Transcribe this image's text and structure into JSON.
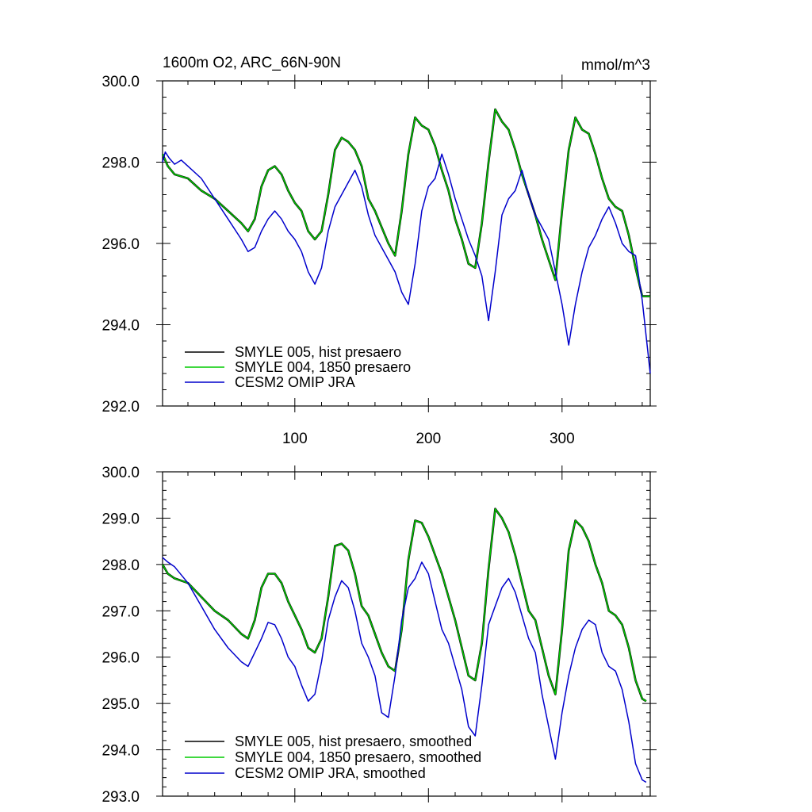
{
  "chart_data": [
    {
      "type": "line",
      "title": "1600m O2, ARC_66N-90N",
      "units": "mmol/m^3",
      "xlabel": "",
      "ylabel": "",
      "xlim": [
        1,
        366
      ],
      "ylim": [
        292.0,
        300.0
      ],
      "x_ticks": [
        100,
        200,
        300
      ],
      "x_tick_labels": [
        "100",
        "200",
        "300"
      ],
      "y_ticks": [
        292.0,
        294.0,
        296.0,
        298.0,
        300.0
      ],
      "y_tick_labels": [
        "292.0",
        "294.0",
        "296.0",
        "298.0",
        "300.0"
      ],
      "grid": false,
      "legend_position": "bottom-left",
      "series": [
        {
          "name": "SMYLE 005, hist presaero",
          "color": "#000000",
          "x": [
            1,
            5,
            10,
            20,
            30,
            40,
            50,
            60,
            65,
            70,
            75,
            80,
            85,
            90,
            95,
            100,
            105,
            110,
            115,
            120,
            125,
            130,
            135,
            140,
            145,
            150,
            155,
            160,
            165,
            170,
            175,
            180,
            185,
            190,
            195,
            200,
            205,
            210,
            215,
            220,
            225,
            230,
            235,
            240,
            245,
            250,
            255,
            260,
            265,
            270,
            275,
            280,
            285,
            290,
            295,
            300,
            305,
            310,
            315,
            320,
            325,
            330,
            335,
            340,
            345,
            350,
            355,
            360,
            366
          ],
          "y": [
            298.2,
            297.9,
            297.7,
            297.6,
            297.3,
            297.1,
            296.8,
            296.5,
            296.3,
            296.6,
            297.4,
            297.8,
            297.9,
            297.7,
            297.3,
            297.0,
            296.8,
            296.3,
            296.1,
            296.3,
            297.2,
            298.3,
            298.6,
            298.5,
            298.3,
            297.9,
            297.1,
            296.8,
            296.4,
            296.0,
            295.7,
            296.8,
            298.2,
            299.1,
            298.9,
            298.8,
            298.4,
            297.8,
            297.3,
            296.6,
            296.1,
            295.5,
            295.4,
            296.5,
            298.0,
            299.3,
            299.0,
            298.8,
            298.3,
            297.7,
            297.2,
            296.7,
            296.1,
            295.6,
            295.1,
            296.8,
            298.3,
            299.1,
            298.8,
            298.7,
            298.2,
            297.6,
            297.1,
            296.9,
            296.8,
            296.2,
            295.4,
            294.7,
            294.7
          ]
        },
        {
          "name": "SMYLE 004, 1850 presaero",
          "color": "#00cc00",
          "x": [
            1,
            5,
            10,
            20,
            30,
            40,
            50,
            60,
            65,
            70,
            75,
            80,
            85,
            90,
            95,
            100,
            105,
            110,
            115,
            120,
            125,
            130,
            135,
            140,
            145,
            150,
            155,
            160,
            165,
            170,
            175,
            180,
            185,
            190,
            195,
            200,
            205,
            210,
            215,
            220,
            225,
            230,
            235,
            240,
            245,
            250,
            255,
            260,
            265,
            270,
            275,
            280,
            285,
            290,
            295,
            300,
            305,
            310,
            315,
            320,
            325,
            330,
            335,
            340,
            345,
            350,
            355,
            360,
            366
          ],
          "y": [
            298.2,
            297.9,
            297.7,
            297.6,
            297.3,
            297.1,
            296.8,
            296.5,
            296.3,
            296.6,
            297.4,
            297.8,
            297.9,
            297.7,
            297.3,
            297.0,
            296.8,
            296.3,
            296.1,
            296.3,
            297.2,
            298.3,
            298.6,
            298.5,
            298.3,
            297.9,
            297.1,
            296.8,
            296.4,
            296.0,
            295.7,
            296.8,
            298.2,
            299.1,
            298.9,
            298.8,
            298.4,
            297.8,
            297.3,
            296.6,
            296.1,
            295.5,
            295.4,
            296.5,
            298.0,
            299.3,
            299.0,
            298.8,
            298.3,
            297.7,
            297.2,
            296.7,
            296.1,
            295.6,
            295.1,
            296.8,
            298.3,
            299.1,
            298.8,
            298.7,
            298.2,
            297.6,
            297.1,
            296.9,
            296.8,
            296.2,
            295.4,
            294.7,
            294.7
          ]
        },
        {
          "name": "CESM2 OMIP JRA",
          "color": "#0000cc",
          "x": [
            1,
            3,
            6,
            10,
            15,
            20,
            30,
            40,
            50,
            60,
            65,
            70,
            75,
            80,
            85,
            90,
            95,
            100,
            105,
            110,
            115,
            120,
            125,
            130,
            135,
            140,
            145,
            150,
            155,
            160,
            165,
            170,
            175,
            180,
            185,
            190,
            195,
            200,
            205,
            210,
            215,
            220,
            225,
            230,
            235,
            240,
            245,
            250,
            255,
            260,
            265,
            270,
            275,
            280,
            285,
            290,
            295,
            300,
            305,
            310,
            315,
            320,
            325,
            330,
            335,
            340,
            345,
            350,
            355,
            360,
            366
          ],
          "y": [
            298.0,
            298.25,
            298.1,
            297.95,
            298.05,
            297.9,
            297.6,
            297.1,
            296.6,
            296.1,
            295.8,
            295.9,
            296.3,
            296.6,
            296.8,
            296.6,
            296.3,
            296.1,
            295.8,
            295.3,
            295.0,
            295.4,
            296.3,
            296.9,
            297.2,
            297.5,
            297.8,
            297.4,
            296.7,
            296.2,
            295.9,
            295.6,
            295.3,
            294.8,
            294.5,
            295.5,
            296.8,
            297.4,
            297.6,
            298.2,
            297.7,
            297.1,
            296.6,
            296.1,
            295.7,
            295.2,
            294.1,
            295.3,
            296.7,
            297.1,
            297.3,
            297.8,
            297.2,
            296.7,
            296.4,
            296.1,
            295.3,
            294.5,
            293.5,
            294.5,
            295.3,
            295.9,
            296.2,
            296.6,
            296.9,
            296.5,
            296.0,
            295.8,
            295.7,
            294.6,
            292.8
          ]
        }
      ]
    },
    {
      "type": "line",
      "title": "",
      "xlabel": "",
      "ylabel": "",
      "xlim": [
        1,
        366
      ],
      "ylim": [
        293.0,
        300.0
      ],
      "x_ticks": [
        100,
        200,
        300
      ],
      "y_ticks": [
        293.0,
        294.0,
        295.0,
        296.0,
        297.0,
        298.0,
        299.0,
        300.0
      ],
      "y_tick_labels": [
        "293.0",
        "294.0",
        "295.0",
        "296.0",
        "297.0",
        "298.0",
        "299.0",
        "300.0"
      ],
      "grid": false,
      "legend_position": "bottom-left",
      "series": [
        {
          "name": "SMYLE 005, hist presaero, smoothed",
          "color": "#000000",
          "x": [
            1,
            5,
            10,
            20,
            30,
            40,
            50,
            60,
            65,
            70,
            75,
            80,
            85,
            90,
            95,
            100,
            105,
            110,
            115,
            120,
            125,
            130,
            135,
            140,
            145,
            150,
            155,
            160,
            165,
            170,
            175,
            180,
            185,
            190,
            195,
            200,
            205,
            210,
            215,
            220,
            225,
            230,
            235,
            240,
            245,
            250,
            255,
            260,
            265,
            270,
            275,
            280,
            285,
            290,
            295,
            300,
            305,
            310,
            315,
            320,
            325,
            330,
            335,
            340,
            345,
            350,
            355,
            360,
            363
          ],
          "y": [
            298.0,
            297.8,
            297.7,
            297.6,
            297.3,
            297.0,
            296.8,
            296.5,
            296.4,
            296.8,
            297.5,
            297.8,
            297.8,
            297.6,
            297.2,
            296.9,
            296.6,
            296.2,
            296.1,
            296.4,
            297.3,
            298.4,
            298.45,
            298.3,
            297.8,
            297.1,
            296.9,
            296.5,
            296.1,
            295.8,
            295.7,
            296.6,
            298.1,
            298.95,
            298.9,
            298.6,
            298.2,
            297.8,
            297.3,
            296.8,
            296.2,
            295.6,
            295.5,
            296.3,
            297.9,
            299.2,
            299.0,
            298.7,
            298.2,
            297.6,
            297.0,
            296.8,
            296.2,
            295.6,
            295.2,
            296.6,
            298.3,
            298.95,
            298.8,
            298.5,
            298.0,
            297.6,
            297.0,
            296.9,
            296.7,
            296.2,
            295.5,
            295.1,
            295.05
          ]
        },
        {
          "name": "SMYLE 004, 1850 presaero, smoothed",
          "color": "#00cc00",
          "x": [
            1,
            5,
            10,
            20,
            30,
            40,
            50,
            60,
            65,
            70,
            75,
            80,
            85,
            90,
            95,
            100,
            105,
            110,
            115,
            120,
            125,
            130,
            135,
            140,
            145,
            150,
            155,
            160,
            165,
            170,
            175,
            180,
            185,
            190,
            195,
            200,
            205,
            210,
            215,
            220,
            225,
            230,
            235,
            240,
            245,
            250,
            255,
            260,
            265,
            270,
            275,
            280,
            285,
            290,
            295,
            300,
            305,
            310,
            315,
            320,
            325,
            330,
            335,
            340,
            345,
            350,
            355,
            360,
            363
          ],
          "y": [
            298.0,
            297.8,
            297.7,
            297.6,
            297.3,
            297.0,
            296.8,
            296.5,
            296.4,
            296.8,
            297.5,
            297.8,
            297.8,
            297.6,
            297.2,
            296.9,
            296.6,
            296.2,
            296.1,
            296.4,
            297.3,
            298.4,
            298.45,
            298.3,
            297.8,
            297.1,
            296.9,
            296.5,
            296.1,
            295.8,
            295.7,
            296.6,
            298.1,
            298.95,
            298.9,
            298.6,
            298.2,
            297.8,
            297.3,
            296.8,
            296.2,
            295.6,
            295.5,
            296.3,
            297.9,
            299.2,
            299.0,
            298.7,
            298.2,
            297.6,
            297.0,
            296.8,
            296.2,
            295.6,
            295.2,
            296.6,
            298.3,
            298.95,
            298.8,
            298.5,
            298.0,
            297.6,
            297.0,
            296.9,
            296.7,
            296.2,
            295.5,
            295.1,
            295.05
          ]
        },
        {
          "name": "CESM2 OMIP JRA, smoothed",
          "color": "#0000cc",
          "x": [
            1,
            5,
            10,
            20,
            30,
            40,
            50,
            60,
            65,
            70,
            75,
            80,
            85,
            90,
            95,
            100,
            105,
            110,
            115,
            120,
            125,
            130,
            135,
            140,
            145,
            150,
            155,
            160,
            165,
            170,
            175,
            180,
            185,
            190,
            195,
            200,
            205,
            210,
            215,
            220,
            225,
            230,
            235,
            240,
            245,
            250,
            255,
            260,
            265,
            270,
            275,
            280,
            285,
            290,
            295,
            300,
            305,
            310,
            315,
            320,
            325,
            330,
            335,
            340,
            345,
            350,
            355,
            360,
            363
          ],
          "y": [
            298.15,
            298.05,
            297.95,
            297.6,
            297.1,
            296.6,
            296.2,
            295.9,
            295.8,
            296.1,
            296.4,
            296.75,
            296.7,
            296.4,
            296.0,
            295.8,
            295.4,
            295.05,
            295.2,
            295.9,
            296.8,
            297.3,
            297.65,
            297.5,
            297.0,
            296.3,
            296.0,
            295.6,
            294.8,
            294.7,
            295.6,
            296.8,
            297.5,
            297.7,
            298.05,
            297.8,
            297.2,
            296.6,
            296.3,
            295.8,
            295.3,
            294.5,
            294.3,
            295.4,
            296.7,
            297.1,
            297.5,
            297.7,
            297.4,
            296.9,
            296.4,
            296.1,
            295.2,
            294.5,
            293.8,
            294.8,
            295.6,
            296.2,
            296.6,
            296.8,
            296.7,
            296.1,
            295.8,
            295.7,
            295.3,
            294.6,
            293.7,
            293.35,
            293.3
          ]
        }
      ]
    }
  ]
}
